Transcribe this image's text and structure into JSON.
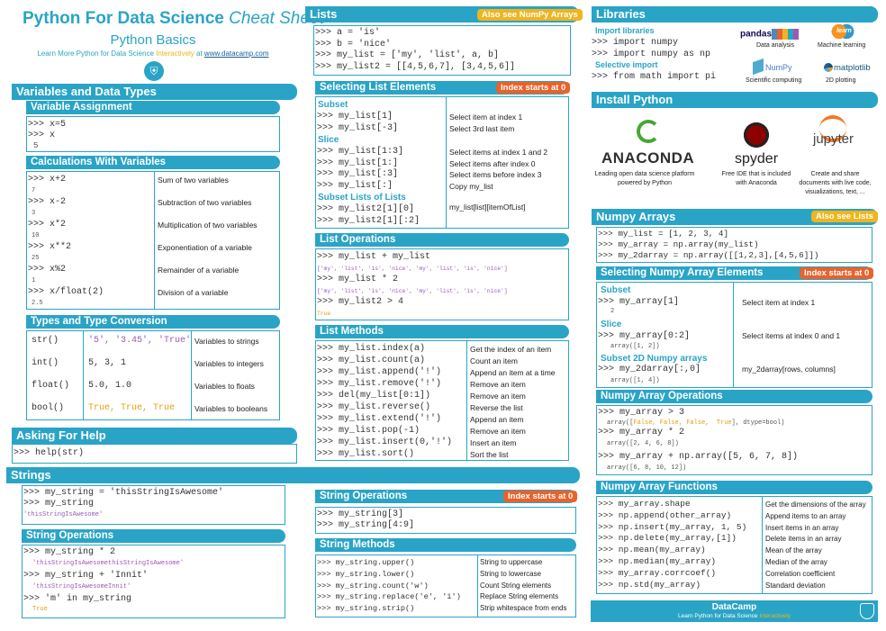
{
  "header": {
    "title1": "Python For Data Science",
    "title2": "Cheat Sheet",
    "subtitle": "Python Basics",
    "learn_pre": "Learn More Python for Data Science ",
    "learn_mid": "Interactively",
    "learn_at": " at  ",
    "learn_url": "www.datacamp.com"
  },
  "variables": {
    "title": "Variables and Data Types",
    "assign": {
      "title": "Variable Assignment",
      "code": [
        ">>> x=5",
        ">>> x"
      ],
      "out": "5"
    },
    "calc": {
      "title": "Calculations With Variables",
      "rows": [
        {
          "code": ">>> x+2",
          "out": "7",
          "desc": "Sum of two variables"
        },
        {
          "code": ">>> x-2",
          "out": "3",
          "desc": "Subtraction of two variables"
        },
        {
          "code": ">>> x*2",
          "out": "10",
          "desc": "Multiplication of two variables"
        },
        {
          "code": ">>> x**2",
          "out": "25",
          "desc": "Exponentiation of a variable"
        },
        {
          "code": ">>> x%2",
          "out": "1",
          "desc": "Remainder of a variable"
        },
        {
          "code": ">>> x/float(2)",
          "out": "2.5",
          "desc": "Division of a variable"
        }
      ]
    },
    "types": {
      "title": "Types and Type Conversion",
      "rows": [
        {
          "fn": "str()",
          "val": "'5', '3.45', 'True'",
          "desc": "Variables to strings"
        },
        {
          "fn": "int()",
          "val": "5, 3, 1",
          "desc": "Variables to integers"
        },
        {
          "fn": "float()",
          "val": "5.0, 1.0",
          "desc": "Variables to floats"
        },
        {
          "fn": "bool()",
          "val": "True, True, True",
          "desc": "Variables to booleans"
        }
      ]
    }
  },
  "help": {
    "title": "Asking For Help",
    "code": ">>> help(str)"
  },
  "strings": {
    "title": "Strings",
    "code": [
      ">>> my_string = 'thisStringIsAwesome'",
      ">>> my_string"
    ],
    "out": "'thisStringIsAwesome'",
    "ops_title": "String Operations",
    "ops": [
      {
        "code": ">>> my_string * 2",
        "out": "'thisStringIsAwesomethisStringIsAwesome'"
      },
      {
        "code": ">>> my_string + 'Innit'",
        "out": "'thisStringIsAwesomeInnit'"
      },
      {
        "code": ">>> 'm' in my_string",
        "out": "True"
      }
    ],
    "ops2_title": "String Operations",
    "ops2_badge": "Index starts at 0",
    "ops2_code": [
      ">>> my_string[3]",
      ">>> my_string[4:9]"
    ],
    "methods_title": "String Methods",
    "methods": [
      {
        "code": ">>> my_string.upper()",
        "desc": "String to uppercase"
      },
      {
        "code": ">>> my_string.lower()",
        "desc": "String to lowercase"
      },
      {
        "code": ">>> my_string.count('w')",
        "desc": "Count String elements"
      },
      {
        "code": ">>> my_string.replace('e', 'i')",
        "desc": "Replace String elements"
      },
      {
        "code": ">>> my_string.strip()",
        "desc": "Strip whitespace from ends"
      }
    ]
  },
  "lists": {
    "title": "Lists",
    "badge": "Also see NumPy Arrays",
    "code": [
      ">>> a = 'is'",
      ">>> b = 'nice'",
      ">>> my_list = ['my', 'list', a, b]",
      ">>> my_list2 = [[4,5,6,7], [3,4,5,6]]"
    ],
    "select": {
      "title": "Selecting List Elements",
      "badge": "Index starts at 0",
      "subset": "Subset",
      "rows1": [
        {
          "code": ">>> my_list[1]",
          "desc": "Select item at index 1"
        },
        {
          "code": ">>> my_list[-3]",
          "desc": "Select 3rd last item"
        }
      ],
      "slice": "Slice",
      "rows2": [
        {
          "code": ">>> my_list[1:3]",
          "desc": "Select items at index 1 and 2"
        },
        {
          "code": ">>> my_list[1:]",
          "desc": "Select items after index 0"
        },
        {
          "code": ">>> my_list[:3]",
          "desc": "Select items before index 3"
        },
        {
          "code": ">>> my_list[:]",
          "desc": "Copy my_list"
        }
      ],
      "sublists": "Subset Lists of Lists",
      "rows3": [
        ">>> my_list2[1][0]",
        ">>> my_list2[1][:2]"
      ],
      "rows3_desc": "my_list[list][itemOfList]"
    },
    "ops": {
      "title": "List Operations",
      "rows": [
        {
          "code": ">>> my_list + my_list",
          "out": "['my', 'list', 'is', 'nice', 'my', 'list', 'is', 'nice']"
        },
        {
          "code": ">>> my_list * 2",
          "out": "['my', 'list', 'is', 'nice', 'my', 'list', 'is', 'nice']"
        },
        {
          "code": ">>> my_list2 > 4",
          "out": "True"
        }
      ]
    },
    "methods": {
      "title": "List Methods",
      "rows": [
        {
          "code": ">>> my_list.index(a)",
          "desc": "Get the index of an item"
        },
        {
          "code": ">>> my_list.count(a)",
          "desc": "Count an item"
        },
        {
          "code": ">>> my_list.append('!')",
          "desc": "Append an item at a time"
        },
        {
          "code": ">>> my_list.remove('!')",
          "desc": "Remove an item"
        },
        {
          "code": ">>> del(my_list[0:1])",
          "desc": "Remove an item"
        },
        {
          "code": ">>> my_list.reverse()",
          "desc": "Reverse the list"
        },
        {
          "code": ">>> my_list.extend('!')",
          "desc": "Append an item"
        },
        {
          "code": ">>> my_list.pop(-1)",
          "desc": "Remove an item"
        },
        {
          "code": ">>> my_list.insert(0,'!')",
          "desc": "Insert an item"
        },
        {
          "code": ">>> my_list.sort()",
          "desc": "Sort the list"
        }
      ]
    }
  },
  "libraries": {
    "title": "Libraries",
    "import_lib": "Import libraries",
    "code1": [
      ">>> import numpy",
      ">>> import numpy as np"
    ],
    "sel_import": "Selective import",
    "code2": ">>> from math import pi",
    "libs": [
      {
        "name": "pandas",
        "cap": "Data analysis"
      },
      {
        "name": "learn",
        "cap": "Machine learning"
      },
      {
        "name": "NumPy",
        "cap": "Scientific computing"
      },
      {
        "name": "matplotlib",
        "cap": "2D plotting"
      }
    ]
  },
  "install": {
    "title": "Install Python",
    "items": [
      {
        "name": "ANACONDA",
        "desc": [
          "Leading open data science platform",
          "powered by Python"
        ]
      },
      {
        "name": "spyder",
        "desc": [
          "Free IDE that is included",
          "with Anaconda"
        ]
      },
      {
        "name": "jupyter",
        "desc": [
          "Create and share",
          "documents with live code,",
          "visualizations, text, ..."
        ]
      }
    ]
  },
  "numpy": {
    "title": "Numpy Arrays",
    "badge": "Also see Lists",
    "code": [
      ">>> my_list = [1, 2, 3, 4]",
      ">>> my_array = np.array(my_list)",
      ">>> my_2darray = np.array([[1,2,3],[4,5,6]])"
    ],
    "select": {
      "title": "Selecting Numpy Array Elements",
      "badge": "Index starts at 0",
      "subset": "Subset",
      "r1": {
        "code": ">>> my_array[1]",
        "out": "2",
        "desc": "Select item at index 1"
      },
      "slice": "Slice",
      "r2": {
        "code": ">>> my_array[0:2]",
        "out": "array([1, 2])",
        "desc": "Select items at index 0 and 1"
      },
      "sub2d": "Subset 2D Numpy arrays",
      "r3": {
        "code": ">>> my_2darray[:,0]",
        "out": "array([1, 4])",
        "desc": "my_2darray[rows, columns]"
      }
    },
    "ops": {
      "title": "Numpy Array Operations",
      "r1": {
        "code": ">>> my_array > 3",
        "out_pre": "array([",
        "out_vals": "False, False, False,  True",
        "out_post": "], dtype=bool)"
      },
      "r2": {
        "code": ">>> my_array * 2",
        "out": "array([2, 4, 6, 8])"
      },
      "r3": {
        "code": ">>> my_array + np.array([5, 6, 7, 8])",
        "out": "array([6, 8, 10, 12])"
      }
    },
    "funcs": {
      "title": "Numpy Array Functions",
      "rows": [
        {
          "code": ">>> my_array.shape",
          "desc": "Get the dimensions of the array"
        },
        {
          "code": ">>> np.append(other_array)",
          "desc": "Append items to an array"
        },
        {
          "code": ">>> np.insert(my_array, 1, 5)",
          "desc": "Insert items in an array"
        },
        {
          "code": ">>> np.delete(my_array,[1])",
          "desc": "Delete items in an array"
        },
        {
          "code": ">>> np.mean(my_array)",
          "desc": "Mean of the array"
        },
        {
          "code": ">>> np.median(my_array)",
          "desc": "Median of the array"
        },
        {
          "code": ">>> my_array.corrcoef()",
          "desc": "Correlation coefficient"
        },
        {
          "code": ">>> np.std(my_array)",
          "desc": "Standard deviation"
        }
      ]
    }
  },
  "footer": {
    "brand": "DataCamp",
    "tag_pre": "Learn Python for Data Science ",
    "tag_mid": "Interactively"
  },
  "colors": {
    "accent": "#2aa4c6",
    "orange": "#e8622c",
    "yellow": "#f0b41e",
    "purple": "#9b59b6"
  }
}
